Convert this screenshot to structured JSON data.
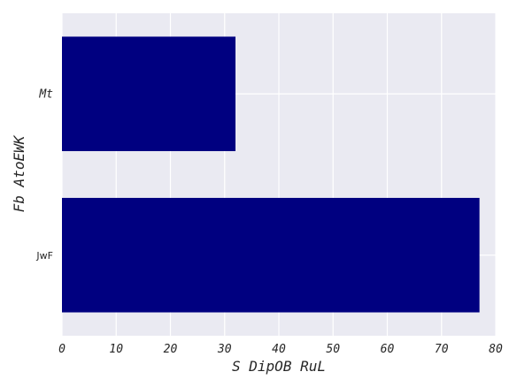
{
  "chart_data": {
    "type": "bar",
    "orientation": "horizontal",
    "categories": [
      "Mt",
      "JwF"
    ],
    "values": [
      32,
      77
    ],
    "xlabel": "S DipOB RuL",
    "ylabel": "Fb AtoEWK",
    "xlim": [
      0,
      80
    ],
    "xticks": [
      0,
      10,
      20,
      30,
      40,
      50,
      60,
      70,
      80
    ],
    "grid": true,
    "bar_color": "#000080",
    "background_color": "#eaeaf2"
  }
}
